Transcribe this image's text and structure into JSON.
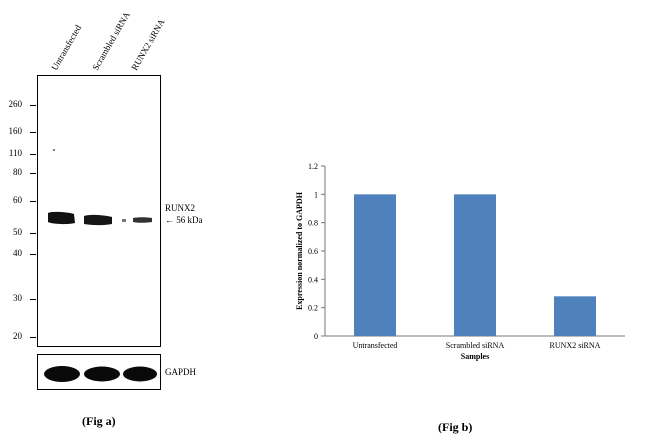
{
  "figure_a": {
    "lane_labels": [
      "Untransfected",
      "Scrambled siRNA",
      "RUNX2 siRNA"
    ],
    "mw_markers": [
      "260",
      "160",
      "110",
      "80",
      "60",
      "50",
      "40",
      "30",
      "20"
    ],
    "band_label": "RUNX2",
    "band_size": "← 56 kDa",
    "loading_control": "GAPDH",
    "caption": "(Fig a)"
  },
  "figure_b": {
    "caption": "(Fig b)"
  },
  "chart_data": {
    "type": "bar",
    "categories": [
      "Untransfected",
      "Scrambled siRNA",
      "RUNX2  siRNA"
    ],
    "values": [
      1.0,
      1.0,
      0.28
    ],
    "title": "",
    "xlabel": "Samples",
    "ylabel": "Expression normalized to GAPDH",
    "ylim": [
      0,
      1.2
    ],
    "yticks": [
      "0",
      "0.2",
      "0.4",
      "0.6",
      "0.8",
      "1",
      "1.2"
    ],
    "bar_color": "#4f81bd",
    "grid": false
  }
}
